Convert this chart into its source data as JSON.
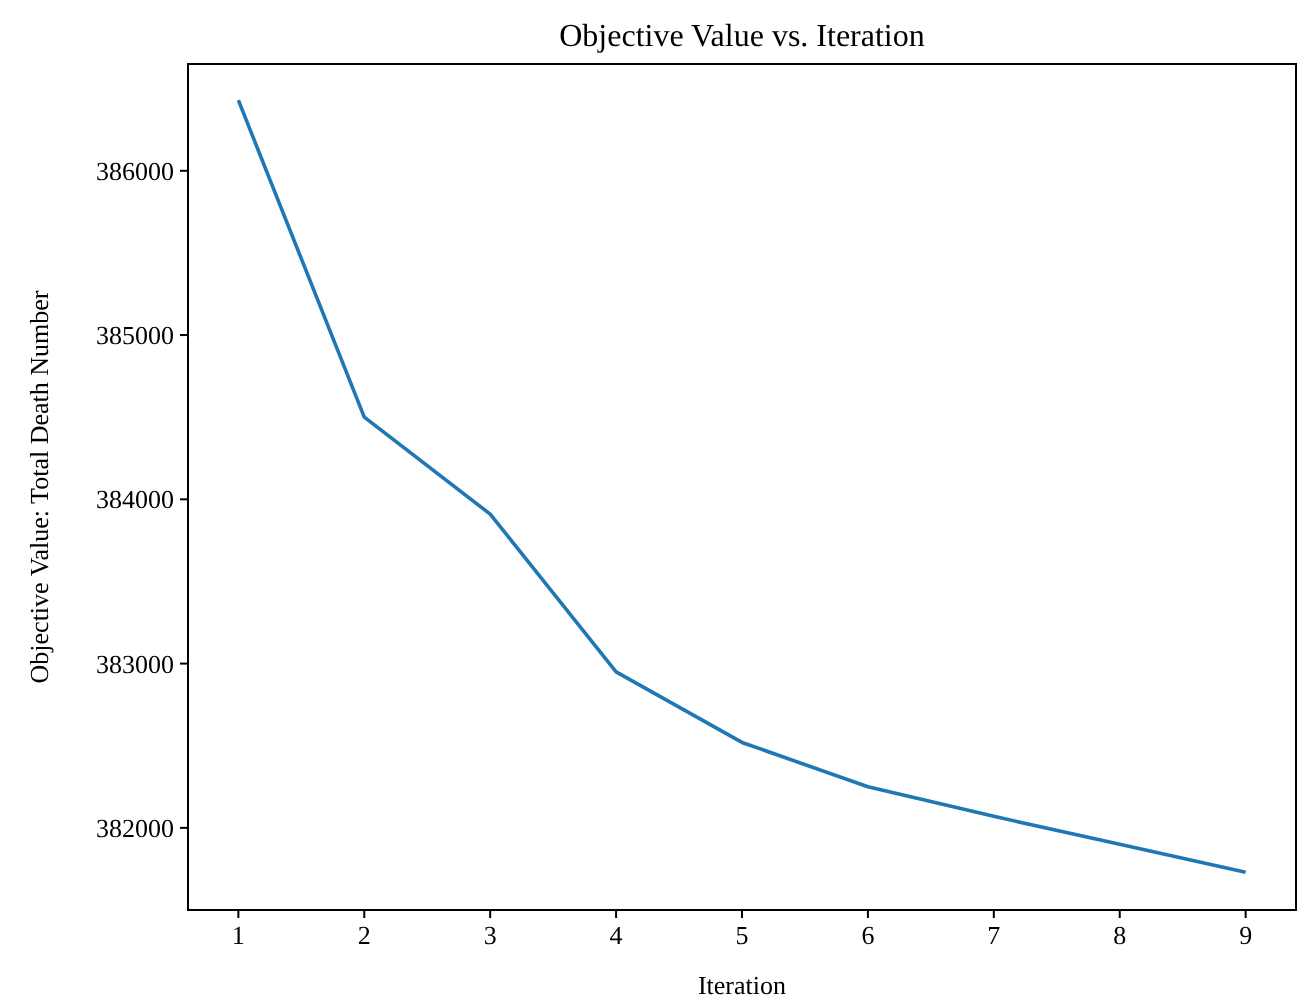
{
  "chart_data": {
    "type": "line",
    "title": "Objective Value vs. Iteration",
    "xlabel": "Iteration",
    "ylabel": "Objective Value: Total Death Number",
    "x": [
      1,
      2,
      3,
      4,
      5,
      6,
      7,
      8,
      9
    ],
    "series": [
      {
        "color": "#1f77b4",
        "values": [
          386430,
          384500,
          383910,
          382950,
          382520,
          382250,
          382070,
          381900,
          381730
        ]
      }
    ],
    "xlim": [
      0.6,
      9.4
    ],
    "xticks": [
      1,
      2,
      3,
      4,
      5,
      6,
      7,
      8,
      9
    ],
    "ylim": [
      381500,
      386650
    ],
    "yticks": [
      382000,
      383000,
      384000,
      385000,
      386000
    ],
    "grid": false,
    "marker": "none",
    "line_style": "solid"
  }
}
